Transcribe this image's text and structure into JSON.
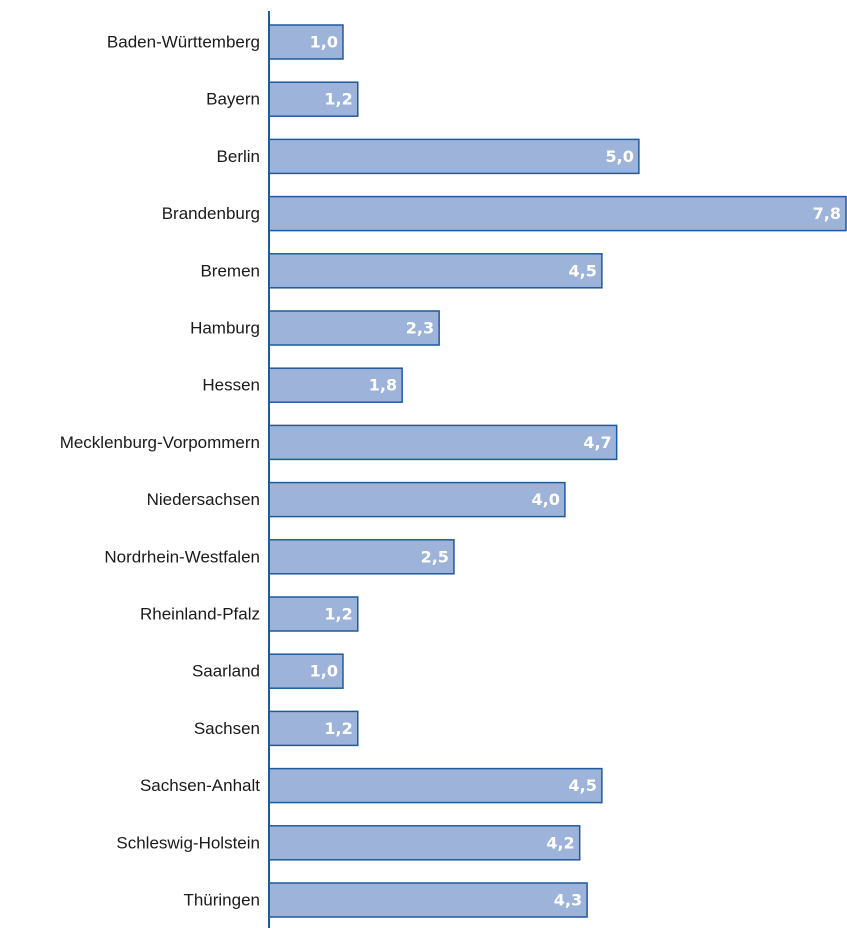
{
  "chart_data": {
    "type": "bar",
    "orientation": "horizontal",
    "categories": [
      "Baden-Württemberg",
      "Bayern",
      "Berlin",
      "Brandenburg",
      "Bremen",
      "Hamburg",
      "Hessen",
      "Mecklenburg-Vorpommern",
      "Niedersachsen",
      "Nordrhein-Westfalen",
      "Rheinland-Pfalz",
      "Saarland",
      "Sachsen",
      "Sachsen-Anhalt",
      "Schleswig-Holstein",
      "Thüringen"
    ],
    "values": [
      1.0,
      1.2,
      5.0,
      7.8,
      4.5,
      2.3,
      1.8,
      4.7,
      4.0,
      2.5,
      1.2,
      1.0,
      1.2,
      4.5,
      4.2,
      4.3
    ],
    "value_labels": [
      "1,0",
      "1,2",
      "5,0",
      "7,8",
      "4,5",
      "2,3",
      "1,8",
      "4,7",
      "4,0",
      "2,5",
      "1,2",
      "1,0",
      "1,2",
      "4,5",
      "4,2",
      "4,3"
    ],
    "title": "",
    "xlabel": "",
    "ylabel": "",
    "xlim": [
      0,
      7.8
    ],
    "grid": false,
    "colors": {
      "bar_fill": "#9db3d9",
      "bar_stroke": "#1f5a9e",
      "axis": "#1f5a9e",
      "value_text": "#ffffff",
      "category_text": "#1a1a1a"
    }
  }
}
